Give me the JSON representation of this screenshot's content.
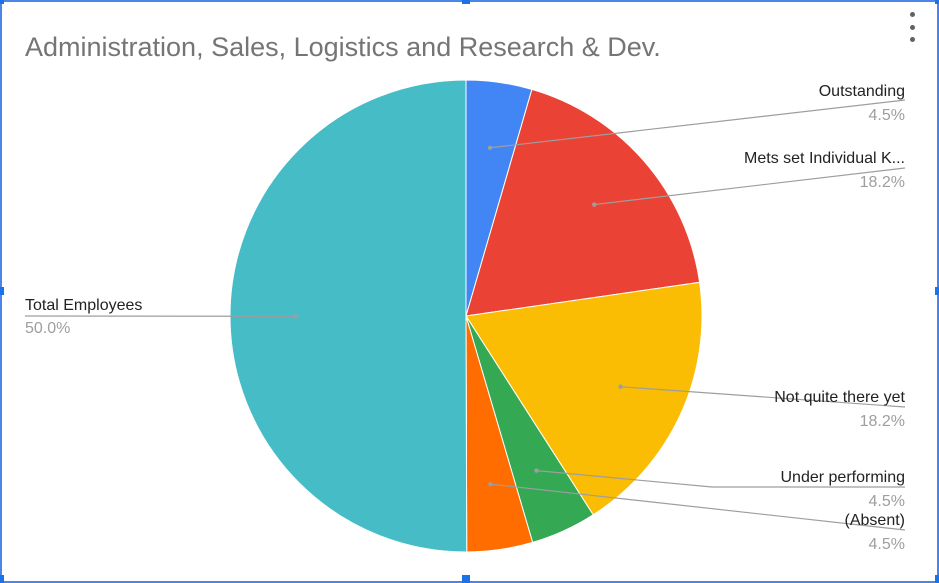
{
  "chart_data": {
    "type": "pie",
    "title": "Administration, Sales, Logistics and Research & Dev.",
    "slices": [
      {
        "label": "Outstanding",
        "value": 4.5,
        "display": "4.5%",
        "color": "#4285f4"
      },
      {
        "label": "Mets set Individual K...",
        "value": 18.2,
        "display": "18.2%",
        "color": "#ea4335"
      },
      {
        "label": "Not quite there yet",
        "value": 18.2,
        "display": "18.2%",
        "color": "#fbbc04"
      },
      {
        "label": "Under performing",
        "value": 4.5,
        "display": "4.5%",
        "color": "#34a853"
      },
      {
        "label": "(Absent)",
        "value": 4.5,
        "display": "4.5%",
        "color": "#ff6d01"
      },
      {
        "label": "Total Employees",
        "value": 50.0,
        "display": "50.0%",
        "color": "#46bdc6"
      }
    ],
    "legend": "none"
  },
  "colors": {
    "title": "#757575",
    "label": "#222222",
    "value": "#9e9e9e",
    "leader": "#9e9e9e",
    "frame": "#4a86e8",
    "handle": "#1a73e8"
  },
  "menu": {
    "icon": "more-vert-icon"
  }
}
